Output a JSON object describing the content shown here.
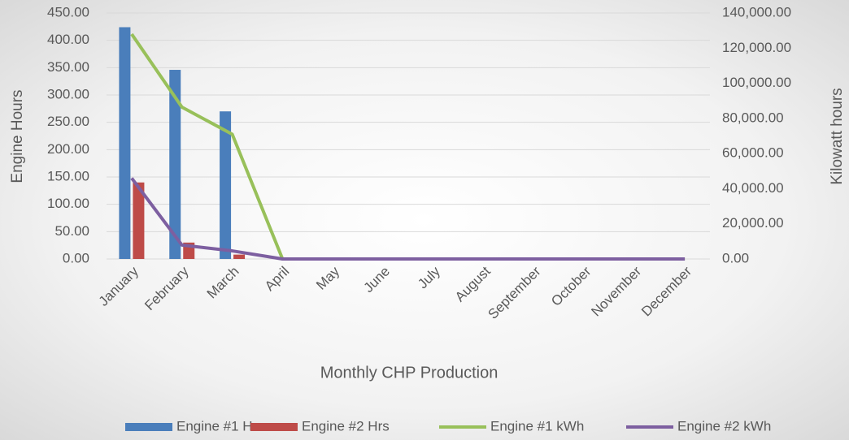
{
  "chart_data": {
    "type": "combo",
    "x_title": "Monthly CHP Production",
    "y_title": "Engine Hours",
    "y2_title": "Kilowatt hours",
    "categories": [
      "January",
      "February",
      "March",
      "April",
      "May",
      "June",
      "July",
      "August",
      "September",
      "October",
      "November",
      "December"
    ],
    "series": [
      {
        "name": "Engine #1 Hrs",
        "type": "bar",
        "color": "#4a7ebb",
        "values": [
          424,
          346,
          270,
          0,
          0,
          0,
          0,
          0,
          0,
          0,
          0,
          0
        ]
      },
      {
        "name": "Engine #2 Hrs",
        "type": "bar",
        "color": "#be4b48",
        "values": [
          140,
          30,
          8,
          0,
          0,
          0,
          0,
          0,
          0,
          0,
          0,
          0
        ]
      },
      {
        "name": "Engine #1 kWh",
        "type": "line",
        "axis": "y2",
        "color": "#98c05a",
        "values": [
          128000,
          86400,
          71000,
          0,
          0,
          0,
          0,
          0,
          0,
          0,
          0,
          0
        ]
      },
      {
        "name": "Engine #2 kWh",
        "type": "line",
        "axis": "y2",
        "color": "#7d5fa0",
        "values": [
          46000,
          7900,
          4600,
          0,
          0,
          0,
          0,
          0,
          0,
          0,
          0,
          0
        ]
      }
    ],
    "ylim": [
      0,
      450
    ],
    "yticks": [
      {
        "value": 0,
        "label": "0.00"
      },
      {
        "value": 50,
        "label": "50.00"
      },
      {
        "value": 100,
        "label": "100.00"
      },
      {
        "value": 150,
        "label": "150.00"
      },
      {
        "value": 200,
        "label": "200.00"
      },
      {
        "value": 250,
        "label": "250.00"
      },
      {
        "value": 300,
        "label": "300.00"
      },
      {
        "value": 350,
        "label": "350.00"
      },
      {
        "value": 400,
        "label": "400.00"
      },
      {
        "value": 450,
        "label": "450.00"
      }
    ],
    "y2lim": [
      0,
      140000
    ],
    "y2ticks": [
      {
        "value": 0,
        "label": "0.00"
      },
      {
        "value": 20000,
        "label": "20,000.00"
      },
      {
        "value": 40000,
        "label": "40,000.00"
      },
      {
        "value": 60000,
        "label": "60,000.00"
      },
      {
        "value": 80000,
        "label": "80,000.00"
      },
      {
        "value": 100000,
        "label": "100,000.00"
      },
      {
        "value": 120000,
        "label": "120,000.00"
      },
      {
        "value": 140000,
        "label": "140,000.00"
      }
    ],
    "grid": true,
    "legend": "bottom"
  }
}
